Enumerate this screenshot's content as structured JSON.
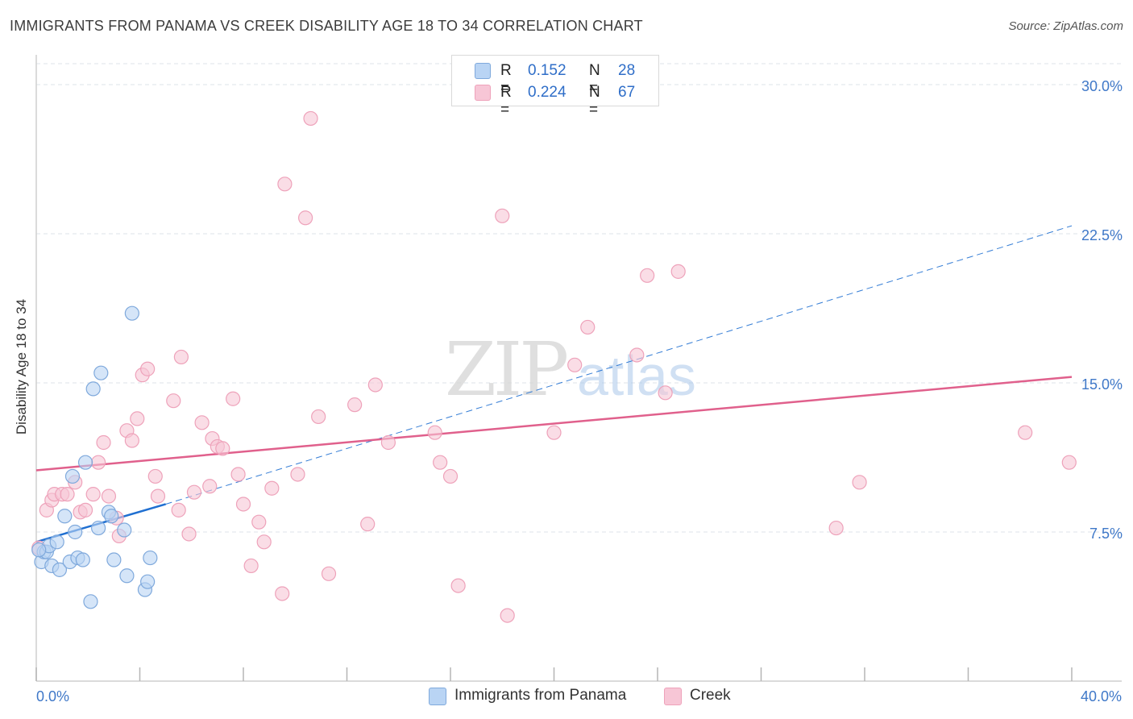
{
  "title": "IMMIGRANTS FROM PANAMA VS CREEK DISABILITY AGE 18 TO 34 CORRELATION CHART",
  "source": "Source: ZipAtlas.com",
  "watermark": {
    "zip": "ZIP",
    "atlas": "atlas"
  },
  "colors": {
    "blue": "#1f6fd1",
    "blue_fill": "#b9d4f4",
    "blue_stroke": "#7fa9dc",
    "pink": "#e0608c",
    "pink_fill": "#f7c6d6",
    "pink_stroke": "#eea2ba",
    "tick_label": "#3f78c8",
    "grid": "#dde3ea",
    "axis": "#cfcfcf"
  },
  "legend": {
    "r_label": "R =",
    "n_label": "N =",
    "series": [
      {
        "r": "0.152",
        "n": "28"
      },
      {
        "r": "0.224",
        "n": "67"
      }
    ]
  },
  "bottom_legend": [
    "Immigrants from Panama",
    "Creek"
  ],
  "chart_data": {
    "type": "scatter",
    "xlabel": "",
    "ylabel": "Disability Age 18 to 34",
    "xlim": [
      0,
      40
    ],
    "ylim": [
      0,
      31.5
    ],
    "x_tick_labels": [
      {
        "value": 0,
        "label": "0.0%"
      },
      {
        "value": 40,
        "label": "40.0%"
      }
    ],
    "x_minor_ticks": [
      0,
      4,
      8,
      12,
      16,
      20,
      24,
      28,
      32,
      36,
      40
    ],
    "y_ticks": [
      {
        "value": 7.5,
        "label": "7.5%"
      },
      {
        "value": 15,
        "label": "15.0%"
      },
      {
        "value": 22.5,
        "label": "22.5%"
      },
      {
        "value": 30,
        "label": "30.0%"
      }
    ],
    "series": [
      {
        "name": "Immigrants from Panama",
        "color_key": "blue",
        "trend": {
          "x0": 0,
          "y0": 7.0,
          "x1": 5.0,
          "y1": 8.9,
          "dash_to_x": 40,
          "dash_to_y": 22.9
        },
        "points": [
          [
            0.2,
            6.0
          ],
          [
            0.3,
            6.5
          ],
          [
            0.4,
            6.5
          ],
          [
            0.5,
            6.8
          ],
          [
            0.6,
            5.8
          ],
          [
            0.8,
            7.0
          ],
          [
            0.9,
            5.6
          ],
          [
            1.1,
            8.3
          ],
          [
            1.3,
            6.0
          ],
          [
            1.4,
            10.3
          ],
          [
            1.5,
            7.5
          ],
          [
            1.6,
            6.2
          ],
          [
            1.8,
            6.1
          ],
          [
            1.9,
            11.0
          ],
          [
            2.1,
            4.0
          ],
          [
            2.2,
            14.7
          ],
          [
            2.4,
            7.7
          ],
          [
            2.5,
            15.5
          ],
          [
            2.8,
            8.5
          ],
          [
            2.9,
            8.3
          ],
          [
            3.0,
            6.1
          ],
          [
            3.4,
            7.6
          ],
          [
            3.5,
            5.3
          ],
          [
            3.7,
            18.5
          ],
          [
            4.2,
            4.6
          ],
          [
            4.3,
            5.0
          ],
          [
            4.4,
            6.2
          ],
          [
            0.1,
            6.6
          ]
        ]
      },
      {
        "name": "Creek",
        "color_key": "pink",
        "trend": {
          "x0": 0,
          "y0": 10.6,
          "x1": 40,
          "y1": 15.3
        },
        "points": [
          [
            0.1,
            6.7
          ],
          [
            0.4,
            8.6
          ],
          [
            0.6,
            9.1
          ],
          [
            0.7,
            9.4
          ],
          [
            1.0,
            9.4
          ],
          [
            1.2,
            9.4
          ],
          [
            1.5,
            10.0
          ],
          [
            1.7,
            8.5
          ],
          [
            1.9,
            8.6
          ],
          [
            2.2,
            9.4
          ],
          [
            2.4,
            11.0
          ],
          [
            2.6,
            12.0
          ],
          [
            2.8,
            9.3
          ],
          [
            3.1,
            8.2
          ],
          [
            3.2,
            7.3
          ],
          [
            3.5,
            12.6
          ],
          [
            3.7,
            12.1
          ],
          [
            3.9,
            13.2
          ],
          [
            4.1,
            15.4
          ],
          [
            4.3,
            15.7
          ],
          [
            4.6,
            10.3
          ],
          [
            4.7,
            9.3
          ],
          [
            5.3,
            14.1
          ],
          [
            5.5,
            8.6
          ],
          [
            5.6,
            16.3
          ],
          [
            5.9,
            7.4
          ],
          [
            6.1,
            9.5
          ],
          [
            6.4,
            13.0
          ],
          [
            6.7,
            9.8
          ],
          [
            6.8,
            12.2
          ],
          [
            7.0,
            11.8
          ],
          [
            7.2,
            11.7
          ],
          [
            7.6,
            14.2
          ],
          [
            7.8,
            10.4
          ],
          [
            8.0,
            8.9
          ],
          [
            8.3,
            5.8
          ],
          [
            8.6,
            8.0
          ],
          [
            8.8,
            7.0
          ],
          [
            9.1,
            9.7
          ],
          [
            9.5,
            4.4
          ],
          [
            9.6,
            25.0
          ],
          [
            10.1,
            10.4
          ],
          [
            10.4,
            23.3
          ],
          [
            10.6,
            28.3
          ],
          [
            10.9,
            13.3
          ],
          [
            11.3,
            5.4
          ],
          [
            12.3,
            13.9
          ],
          [
            12.8,
            7.9
          ],
          [
            13.1,
            14.9
          ],
          [
            13.6,
            12.0
          ],
          [
            15.4,
            12.5
          ],
          [
            15.6,
            11.0
          ],
          [
            16.0,
            10.3
          ],
          [
            16.3,
            4.8
          ],
          [
            18.0,
            23.4
          ],
          [
            18.2,
            3.3
          ],
          [
            20.0,
            12.5
          ],
          [
            20.8,
            15.9
          ],
          [
            21.3,
            17.8
          ],
          [
            23.2,
            16.4
          ],
          [
            23.6,
            20.4
          ],
          [
            24.3,
            14.5
          ],
          [
            24.8,
            20.6
          ],
          [
            30.9,
            7.7
          ],
          [
            31.8,
            10.0
          ],
          [
            38.2,
            12.5
          ],
          [
            39.9,
            11.0
          ]
        ]
      }
    ]
  }
}
